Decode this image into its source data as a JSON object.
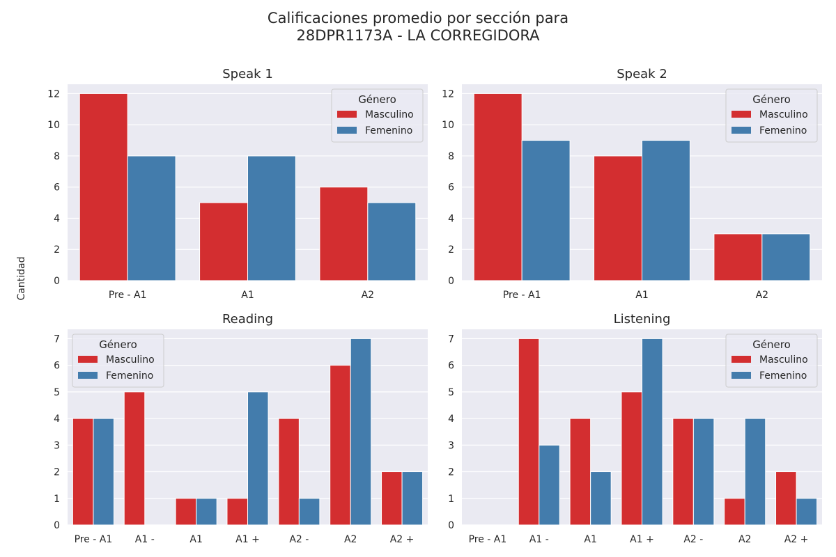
{
  "figure": {
    "title_line1": "Calificaciones promedio por sección para",
    "title_line2": "28DPR1173A - LA CORREGIDORA",
    "ylabel": "Cantidad"
  },
  "chart_data": [
    {
      "type": "bar",
      "title": "Speak 1",
      "categories": [
        "Pre - A1",
        "A1",
        "A2"
      ],
      "series": [
        {
          "name": "Masculino",
          "color": "#d32e30",
          "values": [
            12,
            5,
            6
          ]
        },
        {
          "name": "Femenino",
          "color": "#437cac",
          "values": [
            8,
            8,
            5
          ]
        }
      ],
      "ylim": [
        0,
        12.6
      ],
      "yticks": [
        0,
        2,
        4,
        6,
        8,
        10,
        12
      ],
      "grid": true,
      "legend": {
        "title": "Género",
        "placement": "upper right"
      }
    },
    {
      "type": "bar",
      "title": "Speak 2",
      "categories": [
        "Pre - A1",
        "A1",
        "A2"
      ],
      "series": [
        {
          "name": "Masculino",
          "color": "#d32e30",
          "values": [
            12,
            8,
            3
          ]
        },
        {
          "name": "Femenino",
          "color": "#437cac",
          "values": [
            9,
            9,
            3
          ]
        }
      ],
      "ylim": [
        0,
        12.6
      ],
      "yticks": [
        0,
        2,
        4,
        6,
        8,
        10,
        12
      ],
      "grid": true,
      "legend": {
        "title": "Género",
        "placement": "upper right"
      }
    },
    {
      "type": "bar",
      "title": "Reading",
      "categories": [
        "Pre - A1",
        "A1 -",
        "A1",
        "A1 +",
        "A2 -",
        "A2",
        "A2 +"
      ],
      "series": [
        {
          "name": "Masculino",
          "color": "#d32e30",
          "values": [
            4,
            5,
            1,
            1,
            4,
            6,
            2
          ]
        },
        {
          "name": "Femenino",
          "color": "#437cac",
          "values": [
            4,
            0,
            1,
            5,
            1,
            7,
            2
          ]
        }
      ],
      "ylim": [
        0,
        7.35
      ],
      "yticks": [
        0,
        1,
        2,
        3,
        4,
        5,
        6,
        7
      ],
      "grid": true,
      "legend": {
        "title": "Género",
        "placement": "upper left"
      }
    },
    {
      "type": "bar",
      "title": "Listening",
      "categories": [
        "Pre - A1",
        "A1 -",
        "A1",
        "A1 +",
        "A2 -",
        "A2",
        "A2 +"
      ],
      "series": [
        {
          "name": "Masculino",
          "color": "#d32e30",
          "values": [
            0,
            7,
            4,
            5,
            4,
            1,
            2
          ]
        },
        {
          "name": "Femenino",
          "color": "#437cac",
          "values": [
            0,
            3,
            2,
            7,
            4,
            4,
            1
          ]
        }
      ],
      "ylim": [
        0,
        7.35
      ],
      "yticks": [
        0,
        1,
        2,
        3,
        4,
        5,
        6,
        7
      ],
      "grid": true,
      "legend": {
        "title": "Género",
        "placement": "upper right"
      }
    }
  ]
}
